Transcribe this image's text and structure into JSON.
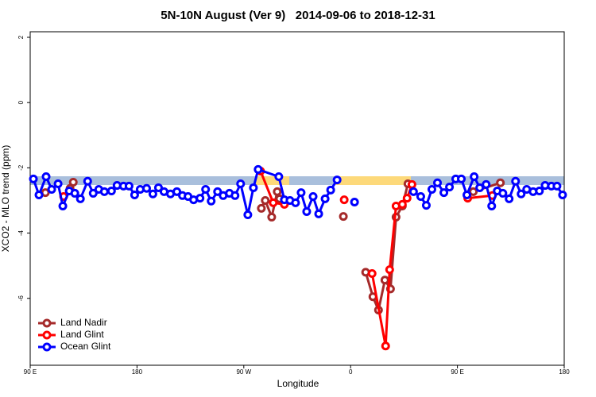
{
  "chart_data": {
    "type": "line",
    "title": "5N-10N August (Ver 9)   2014-09-06 to 2018-12-31",
    "x_label": "Longitude",
    "y_label": "XCO2 - MLO trend (ppm)",
    "xlim": [
      90,
      540
    ],
    "ylim": [
      -8.05,
      2.17
    ],
    "xticks": [
      {
        "value": 90,
        "label": "90 E"
      },
      {
        "value": 180,
        "label": "180"
      },
      {
        "value": 270,
        "label": "90 W"
      },
      {
        "value": 360,
        "label": "0"
      },
      {
        "value": 450,
        "label": "90 E"
      },
      {
        "value": 540,
        "label": "180"
      }
    ],
    "yticks": [
      -6,
      -4,
      -2,
      0,
      2
    ],
    "legend": "bottom-left",
    "series": [
      {
        "name": "Land Nadir",
        "color": "#a52a2a",
        "x": [
          102.8,
          null,
          123.6,
          126.3,
          null,
          284.8,
          288.1,
          293.5,
          298.2,
          300.2,
          null,
          353.9,
          null,
          372.7,
          378.8,
          383.5,
          388.9,
          393.6,
          398.3,
          403.6,
          408.3,
          null,
          463.4,
          486.2
        ],
        "values": [
          -2.76,
          null,
          -2.63,
          -2.44,
          null,
          -3.24,
          -3.0,
          -3.51,
          -2.73,
          -2.95,
          null,
          -3.49,
          null,
          -5.2,
          -5.95,
          -6.36,
          -5.44,
          -5.71,
          -3.51,
          -3.17,
          -2.49,
          null,
          -2.73,
          -2.46
        ]
      },
      {
        "name": "Land Glint",
        "color": "#ff0000",
        "x": [
          118.2,
          null,
          284.1,
          294.8,
          304.2,
          null,
          354.6,
          null,
          378.1,
          389.5,
          392.9,
          398.3,
          403.6,
          407.6,
          411.7,
          null,
          458.7,
          479.5
        ],
        "values": [
          -2.88,
          null,
          -2.1,
          -3.07,
          -3.12,
          null,
          -2.98,
          null,
          -5.24,
          -7.46,
          -5.12,
          -3.17,
          -3.12,
          -2.93,
          -2.51,
          null,
          -2.93,
          -2.85
        ]
      },
      {
        "name": "Ocean Glint",
        "color": "#0000ff",
        "x": [
          92.7,
          97.4,
          103.4,
          108.1,
          113.5,
          117.5,
          122.9,
          127.6,
          132.3,
          138.4,
          143.1,
          147.8,
          152.5,
          158.5,
          163.2,
          168.6,
          173.3,
          178.0,
          182.7,
          188.1,
          193.4,
          198.1,
          202.8,
          208.2,
          213.6,
          218.3,
          223.0,
          227.7,
          233.1,
          237.8,
          242.5,
          247.9,
          252.6,
          257.9,
          262.6,
          267.3,
          273.4,
          278.1,
          282.1,
          299.5,
          304.2,
          308.9,
          313.6,
          318.3,
          323.0,
          328.4,
          333.1,
          338.5,
          343.2,
          348.6,
          null,
          363.3,
          null,
          413.0,
          419.1,
          423.8,
          428.5,
          433.2,
          438.6,
          443.3,
          448.6,
          453.3,
          458.0,
          464.1,
          468.8,
          474.2,
          478.9,
          483.6,
          488.3,
          493.6,
          499.0,
          503.7,
          508.4,
          513.8,
          519.1,
          523.9,
          529.2,
          533.9,
          538.6
        ],
        "values": [
          -2.34,
          -2.83,
          -2.27,
          -2.66,
          -2.49,
          -3.17,
          -2.71,
          -2.78,
          -2.95,
          -2.41,
          -2.78,
          -2.66,
          -2.73,
          -2.71,
          -2.54,
          -2.56,
          -2.56,
          -2.83,
          -2.66,
          -2.63,
          -2.8,
          -2.61,
          -2.73,
          -2.8,
          -2.73,
          -2.85,
          -2.88,
          -2.98,
          -2.93,
          -2.66,
          -3.02,
          -2.73,
          -2.85,
          -2.78,
          -2.85,
          -2.49,
          -3.44,
          -2.61,
          -2.05,
          -2.27,
          -2.98,
          -3.0,
          -3.07,
          -2.76,
          -3.34,
          -2.88,
          -3.41,
          -2.95,
          -2.68,
          -2.37,
          null,
          -3.05,
          null,
          -2.73,
          -2.88,
          -3.15,
          -2.66,
          -2.46,
          -2.76,
          -2.59,
          -2.34,
          -2.34,
          -2.83,
          -2.27,
          -2.61,
          -2.51,
          -3.17,
          -2.71,
          -2.78,
          -2.95,
          -2.41,
          -2.8,
          -2.66,
          -2.73,
          -2.71,
          -2.54,
          -2.56,
          -2.56,
          -2.83
        ]
      }
    ]
  }
}
